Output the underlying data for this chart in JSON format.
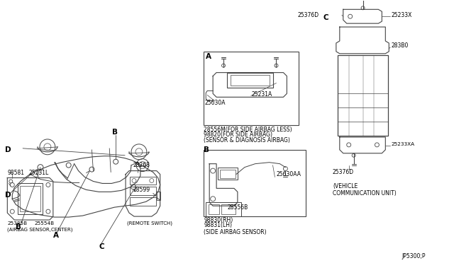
{
  "bg_color": "#ffffff",
  "line_color": "#444444",
  "text_color": "#000000",
  "fig_code": "JP5300;P",
  "A_line1": "28556M(FOR SIDE AIRBAG LESS)",
  "A_line2": "98820(FOR SIDE AIRBAG)",
  "A_line3": "(SENSOR & DIAGNOSIS AIRBAG)",
  "B_line1": "98830(RH)",
  "B_line2": "98831(LH)",
  "B_line3": "(SIDE AIRBAG SENSOR)",
  "C_line1": "(VEHICLE",
  "C_line2": "COMMUNICATION UNIT)",
  "D_label_left": "(AIRBAG SENSOR,CENTER)",
  "D_label_right": "(REMOTE SWITCH)"
}
